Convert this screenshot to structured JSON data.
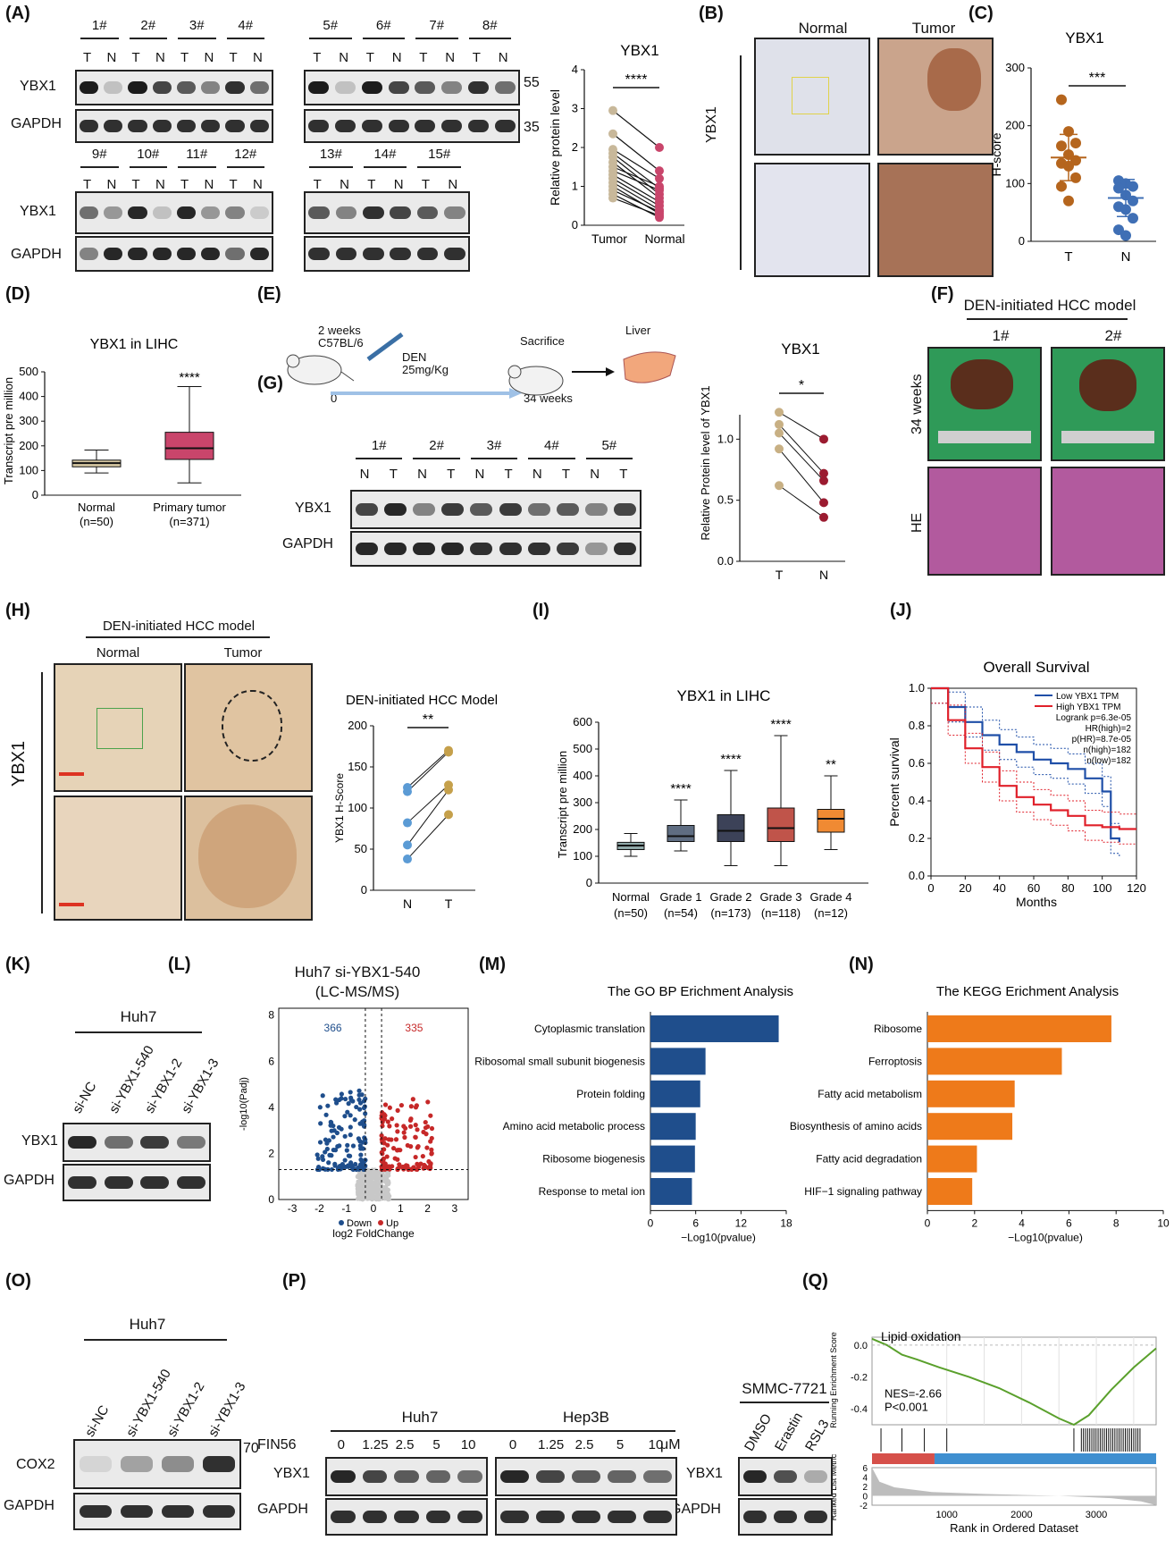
{
  "panels": {
    "A": {
      "label": "(A)",
      "samples_top": [
        "1#",
        "2#",
        "3#",
        "4#",
        "5#",
        "6#",
        "7#",
        "8#"
      ],
      "samples_bottom": [
        "9#",
        "10#",
        "11#",
        "12#",
        "13#",
        "14#",
        "15#"
      ],
      "lane_T": "T",
      "lane_N": "N",
      "row1": "YBX1",
      "row2": "GAPDH",
      "mw_55": "55",
      "mw_35": "35",
      "chart_title": "YBX1",
      "ylabel": "Relative protein level",
      "sig": "****"
    },
    "B": {
      "label": "(B)",
      "col1": "Normal",
      "col2": "Tumor",
      "row": "YBX1"
    },
    "C": {
      "label": "(C)",
      "title": "YBX1",
      "ylabel": "H-score",
      "sig": "***"
    },
    "D": {
      "label": "(D)",
      "title": "YBX1 in LIHC",
      "ylabel": "Transcript pre million",
      "sig": "****",
      "cat1": "Normal",
      "cat1n": "(n=50)",
      "cat2": "Primary tumor",
      "cat2n": "(n=371)"
    },
    "E": {
      "label": "(E)",
      "t1": "2 weeks",
      "t2": "C57BL/6",
      "t3": "DEN",
      "t4": "25mg/Kg",
      "t5": "Sacrifice",
      "t6": "Liver",
      "t7": "0",
      "t8": "34 weeks",
      "chart_title": "YBX1",
      "ylabel": "Relative Protein level of YBX1",
      "sig": "*"
    },
    "F": {
      "label": "(F)",
      "title": "DEN-initiated HCC model",
      "s1": "1#",
      "s2": "2#",
      "r1": "34 weeks",
      "r2": "HE"
    },
    "G": {
      "label": "(G)",
      "samples": [
        "1#",
        "2#",
        "3#",
        "4#",
        "5#"
      ],
      "row1": "YBX1",
      "row2": "GAPDH"
    },
    "H": {
      "label": "(H)",
      "title": "DEN-initiated HCC model",
      "col1": "Normal",
      "col2": "Tumor",
      "row": "YBX1",
      "chart_title": "DEN-initiated HCC Model",
      "ylabel": "YBX1 H-Score",
      "sig": "**"
    },
    "I": {
      "label": "(I)",
      "title": "YBX1 in LIHC",
      "ylabel": "Transcript pre million",
      "cats": [
        "Normal",
        "Grade 1",
        "Grade 2",
        "Grade 3",
        "Grade 4"
      ],
      "ns": [
        "(n=50)",
        "(n=54)",
        "(n=173)",
        "(n=118)",
        "(n=12)"
      ],
      "sigs": [
        "",
        "****",
        "****",
        "****",
        "**"
      ]
    },
    "J": {
      "label": "(J)",
      "title": "Overall Survival",
      "ylabel": "Percent survival",
      "xlabel": "Months",
      "leg1": "Low YBX1 TPM",
      "leg2": "High YBX1 TPM",
      "s1": "Logrank p=6.3e-05",
      "s2": "HR(high)=2",
      "s3": "p(HR)=8.7e-05",
      "s4": "n(high)=182",
      "s5": "n(low)=182"
    },
    "K": {
      "label": "(K)",
      "cell": "Huh7",
      "lanes": [
        "si-NC",
        "si-YBX1-540",
        "si-YBX1-2",
        "si-YBX1-3"
      ],
      "row1": "YBX1",
      "row2": "GAPDH"
    },
    "L": {
      "label": "(L)",
      "title1": "Huh7 si-YBX1-540",
      "title2": "(LC-MS/MS)",
      "down": "366",
      "up": "335",
      "ylabel": "-log10(Padj)",
      "xlabel": "log2 FoldChange",
      "leg_down": "Down",
      "leg_up": "Up"
    },
    "M": {
      "label": "(M)",
      "title": "The GO BP Erichment Analysis",
      "xlabel": "−Log10(pvalue)"
    },
    "N": {
      "label": "(N)",
      "title": "The KEGG Erichment Analysis",
      "xlabel": "−Log10(pvalue)"
    },
    "O": {
      "label": "(O)",
      "cell": "Huh7",
      "lanes": [
        "si-NC",
        "si-YBX1-540",
        "si-YBX1-2",
        "si-YBX1-3"
      ],
      "row1": "COX2",
      "row2": "GAPDH",
      "mw": "70"
    },
    "P": {
      "label": "(P)",
      "cell1": "Huh7",
      "cell2": "Hep3B",
      "cell3": "SMMC-7721",
      "drug": "FIN56",
      "doses": [
        "0",
        "1.25",
        "2.5",
        "5",
        "10"
      ],
      "unit": "μM",
      "lanes3": [
        "DMSO",
        "Erastin",
        "RSL3"
      ],
      "row1": "YBX1",
      "row2": "GAPDH"
    },
    "Q": {
      "label": "(Q)",
      "title": "Lipid oxidation",
      "ylabel1": "Running Enrichment Score",
      "ylabel2": "Ranked List Metric",
      "nes": "NES=-2.66",
      "p": "P<0.001",
      "xlabel": "Rank in Ordered Dataset"
    }
  },
  "chart_data": [
    {
      "id": "A_paired",
      "type": "scatter",
      "title": "YBX1",
      "ylabel": "Relative protein level",
      "categories": [
        "Tumor",
        "Normal"
      ],
      "ylim": [
        0,
        4
      ],
      "yticks": [
        0,
        1,
        2,
        3,
        4
      ],
      "tumor": [
        2.95,
        2.35,
        1.95,
        1.85,
        1.75,
        1.62,
        1.5,
        1.4,
        1.3,
        1.2,
        1.1,
        1.0,
        0.9,
        0.8,
        0.7
      ],
      "normal": [
        2.0,
        1.4,
        1.2,
        0.95,
        0.8,
        0.7,
        1.0,
        0.9,
        0.6,
        0.5,
        0.4,
        0.3,
        0.35,
        0.2,
        0.25
      ]
    },
    {
      "id": "C_scatter",
      "type": "scatter",
      "title": "YBX1",
      "ylabel": "H-score",
      "categories": [
        "T",
        "N"
      ],
      "ylim": [
        0,
        300
      ],
      "yticks": [
        0,
        100,
        200,
        300
      ],
      "T": [
        245,
        190,
        170,
        165,
        150,
        140,
        135,
        130,
        110,
        95,
        70
      ],
      "N": [
        105,
        100,
        95,
        92,
        80,
        70,
        60,
        55,
        40,
        20,
        10
      ],
      "meanT": 145,
      "sdT": 40,
      "meanN": 75,
      "sdN": 32
    },
    {
      "id": "D_box",
      "type": "box",
      "ylim": [
        0,
        500
      ],
      "yticks": [
        0,
        100,
        200,
        300,
        400,
        500
      ],
      "boxes": [
        {
          "min": 90,
          "q1": 115,
          "med": 130,
          "q3": 142,
          "max": 183,
          "color": "#d8c9a3"
        },
        {
          "min": 50,
          "q1": 145,
          "med": 190,
          "q3": 255,
          "max": 440,
          "color": "#c9456b"
        }
      ]
    },
    {
      "id": "E_paired",
      "type": "scatter",
      "categories": [
        "T",
        "N"
      ],
      "ylim": [
        0,
        1.2
      ],
      "yticks": [
        0.0,
        0.5,
        1.0
      ],
      "T": [
        1.22,
        1.12,
        1.05,
        0.92,
        0.62
      ],
      "N": [
        1.0,
        0.72,
        0.66,
        0.48,
        0.36
      ]
    },
    {
      "id": "H_paired",
      "type": "scatter",
      "categories": [
        "N",
        "T"
      ],
      "ylim": [
        0,
        200
      ],
      "yticks": [
        0,
        50,
        100,
        150,
        200
      ],
      "N": [
        125,
        120,
        82,
        55,
        38
      ],
      "T": [
        170,
        168,
        128,
        122,
        92
      ]
    },
    {
      "id": "I_box",
      "type": "box",
      "ylim": [
        0,
        600
      ],
      "yticks": [
        0,
        100,
        200,
        300,
        400,
        500,
        600
      ],
      "boxes": [
        {
          "min": 100,
          "q1": 125,
          "med": 140,
          "q3": 152,
          "max": 185,
          "color": "#8fa8a8"
        },
        {
          "min": 120,
          "q1": 155,
          "med": 175,
          "q3": 215,
          "max": 310,
          "color": "#5f6d82"
        },
        {
          "min": 65,
          "q1": 155,
          "med": 195,
          "q3": 255,
          "max": 420,
          "color": "#3c4258"
        },
        {
          "min": 65,
          "q1": 155,
          "med": 205,
          "q3": 280,
          "max": 550,
          "color": "#c0544a"
        },
        {
          "min": 125,
          "q1": 190,
          "med": 240,
          "q3": 275,
          "max": 400,
          "color": "#f08a33"
        }
      ]
    },
    {
      "id": "J_km",
      "type": "line",
      "xlim": [
        0,
        120
      ],
      "ylim": [
        0,
        1
      ],
      "xticks": [
        0,
        20,
        40,
        60,
        80,
        100,
        120
      ],
      "yticks": [
        0.0,
        0.2,
        0.4,
        0.6,
        0.8,
        1.0
      ],
      "low": [
        [
          0,
          1
        ],
        [
          10,
          0.9
        ],
        [
          20,
          0.82
        ],
        [
          30,
          0.75
        ],
        [
          40,
          0.7
        ],
        [
          50,
          0.66
        ],
        [
          60,
          0.62
        ],
        [
          70,
          0.6
        ],
        [
          80,
          0.57
        ],
        [
          90,
          0.52
        ],
        [
          100,
          0.45
        ],
        [
          105,
          0.2
        ],
        [
          110,
          0.18
        ]
      ],
      "high": [
        [
          0,
          1
        ],
        [
          10,
          0.83
        ],
        [
          20,
          0.68
        ],
        [
          30,
          0.58
        ],
        [
          40,
          0.48
        ],
        [
          50,
          0.42
        ],
        [
          60,
          0.38
        ],
        [
          70,
          0.35
        ],
        [
          80,
          0.32
        ],
        [
          90,
          0.27
        ],
        [
          100,
          0.26
        ],
        [
          110,
          0.25
        ],
        [
          120,
          0.25
        ]
      ]
    },
    {
      "id": "M_bar",
      "type": "bar",
      "xlim": [
        0,
        18
      ],
      "xticks": [
        0,
        6,
        12,
        18
      ],
      "categories": [
        "Cytoplasmic translation",
        "Ribosomal small subunit biogenesis",
        "Protein folding",
        "Amino acid metabolic process",
        "Ribosome biogenesis",
        "Response to metal ion"
      ],
      "values": [
        17.0,
        7.3,
        6.6,
        6.0,
        5.9,
        5.5
      ]
    },
    {
      "id": "N_bar",
      "type": "bar",
      "xlim": [
        0,
        10
      ],
      "xticks": [
        0,
        2,
        4,
        6,
        8,
        10
      ],
      "categories": [
        "Ribosome",
        "Ferroptosis",
        "Fatty acid metabolism",
        "Biosynthesis of amino acids",
        "Fatty acid degradation",
        "HIF−1 signaling pathway"
      ],
      "values": [
        7.8,
        5.7,
        3.7,
        3.6,
        2.1,
        1.9
      ]
    },
    {
      "id": "L_volcano",
      "type": "scatter",
      "xlim": [
        -3.5,
        3.5
      ],
      "ylim": [
        0,
        8.3
      ],
      "xticks": [
        -3,
        -2,
        -1,
        0,
        1,
        2,
        3
      ],
      "yticks": [
        0,
        2,
        4,
        6,
        8
      ]
    },
    {
      "id": "Q_gsea",
      "type": "line",
      "xlim": [
        0,
        3800
      ],
      "xticks": [
        1000,
        2000,
        3000
      ],
      "yticks_es": [
        0.0,
        -0.2,
        -0.4
      ],
      "yticks_rank": [
        -2,
        0,
        2,
        4,
        6
      ]
    }
  ]
}
